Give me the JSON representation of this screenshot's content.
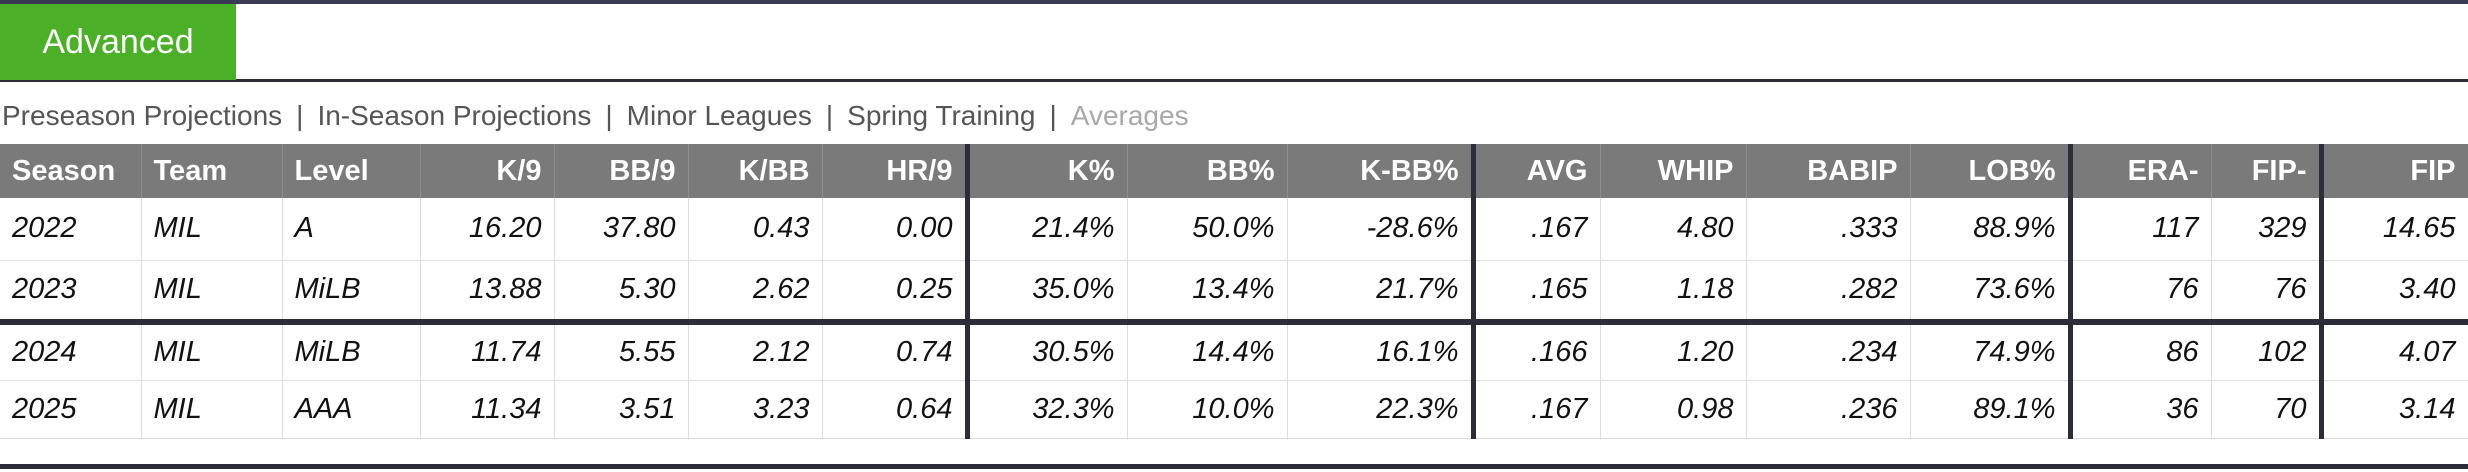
{
  "tab": {
    "label": "Advanced"
  },
  "nav": {
    "links": [
      "Preseason Projections",
      "In-Season Projections",
      "Minor Leagues",
      "Spring Training",
      "Averages"
    ],
    "separator": "|"
  },
  "table": {
    "columns": [
      "Season",
      "Team",
      "Level",
      "K/9",
      "BB/9",
      "K/BB",
      "HR/9",
      "K%",
      "BB%",
      "K-BB%",
      "AVG",
      "WHIP",
      "BABIP",
      "LOB%",
      "ERA-",
      "FIP-",
      "FIP"
    ],
    "rows": [
      [
        "2022",
        "MIL",
        "A",
        "16.20",
        "37.80",
        "0.43",
        "0.00",
        "21.4%",
        "50.0%",
        "-28.6%",
        ".167",
        "4.80",
        ".333",
        "88.9%",
        "117",
        "329",
        "14.65"
      ],
      [
        "2023",
        "MIL",
        "MiLB",
        "13.88",
        "5.30",
        "2.62",
        "0.25",
        "35.0%",
        "13.4%",
        "21.7%",
        ".165",
        "1.18",
        ".282",
        "73.6%",
        "76",
        "76",
        "3.40"
      ]
    ],
    "projection_rows": [
      [
        "2024",
        "MIL",
        "MiLB",
        "11.74",
        "5.55",
        "2.12",
        "0.74",
        "30.5%",
        "14.4%",
        "16.1%",
        ".166",
        "1.20",
        ".234",
        "74.9%",
        "86",
        "102",
        "4.07"
      ],
      [
        "2025",
        "MIL",
        "AAA",
        "11.34",
        "3.51",
        "3.23",
        "0.64",
        "32.3%",
        "10.0%",
        "22.3%",
        ".167",
        "0.98",
        ".236",
        "89.1%",
        "36",
        "70",
        "3.14"
      ]
    ]
  },
  "colors": {
    "tab_bg": "#4caf28",
    "header_bg": "#7a7a7a",
    "divider": "#2d2d3a",
    "inactive_link": "#a8a8a8"
  }
}
